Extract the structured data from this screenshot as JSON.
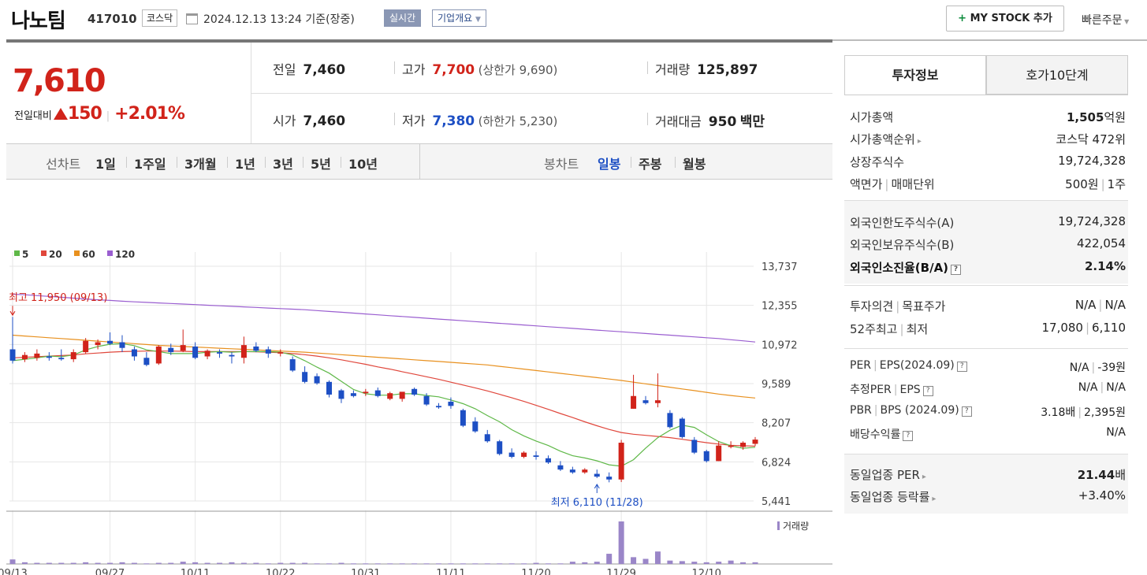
{
  "header": {
    "name": "나노팀",
    "code": "417010",
    "market": "코스닥",
    "datetime": "2024.12.13 13:24",
    "basis": "기준(장중)",
    "realtime": "실시간",
    "company_info": "기업개요",
    "mystock": "MY STOCK 추가",
    "mystock_plus": "+",
    "quick_order": "빠른주문"
  },
  "price": {
    "current": "7,610",
    "compare_label": "전일대비",
    "change": "150",
    "change_pct": "+2.01%"
  },
  "quote": {
    "prev_label": "전일",
    "prev": "7,460",
    "high_label": "고가",
    "high": "7,700",
    "upper_limit": "(상한가 9,690)",
    "volume_label": "거래량",
    "volume": "125,897",
    "open_label": "시가",
    "open": "7,460",
    "low_label": "저가",
    "low": "7,380",
    "lower_limit": "(하한가 5,230)",
    "amount_label": "거래대금",
    "amount": "950",
    "amount_unit": "백만"
  },
  "period_tabs": {
    "label": "선차트",
    "items": [
      "1일",
      "1주일",
      "3개월",
      "1년",
      "3년",
      "5년",
      "10년"
    ],
    "candle_label": "봉차트",
    "candle_items": [
      "일봉",
      "주봉",
      "월봉"
    ]
  },
  "colors": {
    "up": "#d1231a",
    "down": "#1d4fc4",
    "ma5": "#5fb848",
    "ma20": "#e0473c",
    "ma60": "#e8901e",
    "ma120": "#9a5ed0",
    "volume": "#9a86c8"
  },
  "chart_data": {
    "type": "candlestick",
    "legend": [
      "5",
      "20",
      "60",
      "120"
    ],
    "y_ticks": [
      "13,737",
      "12,355",
      "10,972",
      "9,589",
      "8,207",
      "6,824",
      "5,441"
    ],
    "y_tick_values": [
      13737,
      12355,
      10972,
      9589,
      8207,
      6824,
      5441
    ],
    "ylim": [
      5441,
      13737
    ],
    "x_ticks": [
      {
        "label": "09/13",
        "index": 0
      },
      {
        "label": "09/27",
        "index": 8
      },
      {
        "label": "10/11",
        "index": 15
      },
      {
        "label": "10/22",
        "index": 22
      },
      {
        "label": "10/31",
        "index": 29
      },
      {
        "label": "11/11",
        "index": 36
      },
      {
        "label": "11/20",
        "index": 43
      },
      {
        "label": "11/29",
        "index": 50
      },
      {
        "label": "12/10",
        "index": 57
      }
    ],
    "max_label": "최고 11,950 (09/13)",
    "min_label": "최저 6,110 (11/28)",
    "max_index": 0,
    "max_value": 11950,
    "min_index": 48,
    "min_value": 6110,
    "volume_label": "거래량",
    "candles": [
      [
        10800,
        11950,
        10300,
        10400
      ],
      [
        10450,
        10700,
        10350,
        10600
      ],
      [
        10500,
        10800,
        10400,
        10650
      ],
      [
        10550,
        10700,
        10400,
        10500
      ],
      [
        10500,
        10800,
        10400,
        10450
      ],
      [
        10450,
        10800,
        10350,
        10700
      ],
      [
        10700,
        11200,
        10650,
        11100
      ],
      [
        10950,
        11150,
        10800,
        11050
      ],
      [
        11100,
        11400,
        10950,
        11000
      ],
      [
        11050,
        11300,
        10700,
        10850
      ],
      [
        10800,
        10900,
        10400,
        10550
      ],
      [
        10500,
        10700,
        10200,
        10250
      ],
      [
        10300,
        10950,
        10250,
        10900
      ],
      [
        10850,
        11000,
        10600,
        10700
      ],
      [
        10750,
        11500,
        10700,
        10950
      ],
      [
        10900,
        11050,
        10450,
        10500
      ],
      [
        10550,
        10800,
        10450,
        10750
      ],
      [
        10700,
        10800,
        10500,
        10650
      ],
      [
        10600,
        10700,
        10300,
        10550
      ],
      [
        10500,
        11250,
        10300,
        10950
      ],
      [
        10900,
        11050,
        10700,
        10750
      ],
      [
        10800,
        10900,
        10500,
        10650
      ],
      [
        10650,
        10800,
        10550,
        10700
      ],
      [
        10450,
        10550,
        10000,
        10050
      ],
      [
        10000,
        10200,
        9600,
        9650
      ],
      [
        9850,
        9950,
        9550,
        9600
      ],
      [
        9650,
        9700,
        9100,
        9200
      ],
      [
        9350,
        9400,
        8900,
        9050
      ],
      [
        9250,
        9350,
        9100,
        9150
      ],
      [
        9250,
        9400,
        9150,
        9300
      ],
      [
        9350,
        9450,
        9100,
        9150
      ],
      [
        9050,
        9300,
        9000,
        9250
      ],
      [
        9050,
        9250,
        8950,
        9300
      ],
      [
        9400,
        9450,
        9150,
        9200
      ],
      [
        9150,
        9250,
        8800,
        8850
      ],
      [
        8800,
        8900,
        8700,
        8750
      ],
      [
        8950,
        9100,
        8700,
        8800
      ],
      [
        8650,
        8700,
        8050,
        8100
      ],
      [
        8250,
        8400,
        7850,
        7900
      ],
      [
        7800,
        7950,
        7500,
        7550
      ],
      [
        7550,
        7600,
        7050,
        7100
      ],
      [
        7150,
        7300,
        6950,
        7000
      ],
      [
        7000,
        7200,
        6950,
        7150
      ],
      [
        7050,
        7200,
        6900,
        7000
      ],
      [
        6950,
        7050,
        6750,
        6800
      ],
      [
        6700,
        6850,
        6500,
        6550
      ],
      [
        6550,
        6650,
        6400,
        6450
      ],
      [
        6450,
        6600,
        6400,
        6550
      ],
      [
        6400,
        6550,
        6250,
        6300
      ],
      [
        6300,
        6450,
        6100,
        6200
      ],
      [
        6200,
        7600,
        6110,
        7500
      ],
      [
        8700,
        9900,
        8700,
        9150
      ],
      [
        9000,
        9150,
        8850,
        8900
      ],
      [
        8900,
        9950,
        8750,
        9000
      ],
      [
        8550,
        8650,
        8000,
        8050
      ],
      [
        8350,
        8400,
        7650,
        7700
      ],
      [
        7600,
        7700,
        7100,
        7150
      ],
      [
        7200,
        7250,
        6800,
        6850
      ],
      [
        6850,
        7550,
        6850,
        7400
      ],
      [
        7350,
        7550,
        7300,
        7400
      ],
      [
        7350,
        7550,
        7250,
        7500
      ],
      [
        7460,
        7700,
        7380,
        7610
      ]
    ],
    "ma5": [
      10400,
      10450,
      10500,
      10560,
      10540,
      10600,
      10780,
      10900,
      10980,
      11000,
      10930,
      10780,
      10720,
      10650,
      10650,
      10650,
      10700,
      10720,
      10700,
      10720,
      10720,
      10720,
      10700,
      10600,
      10400,
      10170,
      9960,
      9670,
      9380,
      9230,
      9180,
      9180,
      9230,
      9230,
      9170,
      9120,
      9010,
      8880,
      8700,
      8460,
      8240,
      7960,
      7740,
      7560,
      7400,
      7200,
      7040,
      6960,
      6860,
      6720,
      6670,
      6900,
      7310,
      7680,
      7940,
      8120,
      8040,
      7780,
      7540,
      7390,
      7300,
      7340
    ],
    "ma20": [
      10500,
      10520,
      10540,
      10560,
      10580,
      10600,
      10640,
      10670,
      10700,
      10720,
      10730,
      10740,
      10740,
      10740,
      10730,
      10720,
      10720,
      10720,
      10720,
      10720,
      10710,
      10700,
      10680,
      10650,
      10610,
      10560,
      10500,
      10430,
      10350,
      10270,
      10180,
      10100,
      10010,
      9920,
      9830,
      9740,
      9640,
      9540,
      9440,
      9330,
      9210,
      9090,
      8960,
      8820,
      8680,
      8530,
      8390,
      8240,
      8100,
      7970,
      7860,
      7800,
      7760,
      7720,
      7680,
      7620,
      7560,
      7500,
      7450,
      7410,
      7390,
      7380
    ],
    "ma60": [
      11300,
      11270,
      11240,
      11210,
      11180,
      11150,
      11120,
      11090,
      11060,
      11030,
      11000,
      10970,
      10940,
      10920,
      10900,
      10880,
      10860,
      10840,
      10820,
      10800,
      10780,
      10760,
      10740,
      10720,
      10700,
      10670,
      10640,
      10610,
      10580,
      10550,
      10520,
      10490,
      10460,
      10430,
      10400,
      10370,
      10340,
      10310,
      10280,
      10250,
      10200,
      10150,
      10100,
      10050,
      10000,
      9950,
      9900,
      9850,
      9800,
      9750,
      9700,
      9640,
      9580,
      9520,
      9460,
      9400,
      9340,
      9280,
      9220,
      9170,
      9120,
      9080
    ],
    "ma120": [
      12750,
      12730,
      12700,
      12670,
      12640,
      12610,
      12580,
      12550,
      12530,
      12500,
      12480,
      12460,
      12440,
      12420,
      12400,
      12380,
      12360,
      12340,
      12320,
      12300,
      12280,
      12260,
      12240,
      12220,
      12200,
      12170,
      12140,
      12110,
      12080,
      12050,
      12020,
      11990,
      11960,
      11930,
      11900,
      11870,
      11840,
      11810,
      11780,
      11750,
      11720,
      11690,
      11660,
      11630,
      11600,
      11570,
      11540,
      11510,
      11480,
      11450,
      11420,
      11390,
      11360,
      11330,
      11300,
      11270,
      11240,
      11210,
      11180,
      11140,
      11100,
      11060
    ],
    "volumes": [
      8,
      3,
      2,
      2,
      2,
      2,
      3,
      2,
      2,
      3,
      2,
      1,
      2,
      2,
      4,
      3,
      2,
      2,
      3,
      2,
      2,
      1,
      2,
      2,
      2,
      1,
      1,
      2,
      1,
      1,
      1,
      1,
      1,
      1,
      1,
      1,
      1,
      1,
      1,
      1,
      1,
      1,
      1,
      2,
      1,
      1,
      4,
      3,
      4,
      18,
      75,
      12,
      9,
      22,
      6,
      5,
      4,
      3,
      4,
      6,
      3,
      3
    ]
  },
  "tabs_right": {
    "invest": "투자정보",
    "hoga": "호가10단계"
  },
  "invest": {
    "market_cap_label": "시가총액",
    "market_cap": "1,505",
    "market_cap_unit": "억원",
    "rank_label": "시가총액순위",
    "rank": "코스닥 472위",
    "shares_label": "상장주식수",
    "shares": "19,724,328",
    "face_label": "액면가",
    "unit_label": "매매단위",
    "face": "500원",
    "unit": "1주",
    "foreign_limit_label": "외국인한도주식수(A)",
    "foreign_limit": "19,724,328",
    "foreign_hold_label": "외국인보유주식수(B)",
    "foreign_hold": "422,054",
    "foreign_ratio_label": "외국인소진율(B/A)",
    "foreign_ratio": "2.14%",
    "opinion_label": "투자의견",
    "target_label": "목표주가",
    "opinion": "N/A",
    "target": "N/A",
    "w52_high_label": "52주최고",
    "w52_low_label": "최저",
    "w52_high": "17,080",
    "w52_low": "6,110",
    "per_label": "PER",
    "eps_label": "EPS(2024.09)",
    "per": "N/A",
    "eps": "-39원",
    "eper_label": "추정PER",
    "eeps_label": "EPS",
    "eper": "N/A",
    "eeps": "N/A",
    "pbr_label": "PBR",
    "bps_label": "BPS (2024.09)",
    "pbr": "3.18배",
    "bps": "2,395원",
    "div_label": "배당수익률",
    "div": "N/A",
    "sector_per_label": "동일업종 PER",
    "sector_per": "21.44",
    "sector_per_unit": "배",
    "sector_chg_label": "동일업종 등락률",
    "sector_chg": "+3.40%"
  }
}
